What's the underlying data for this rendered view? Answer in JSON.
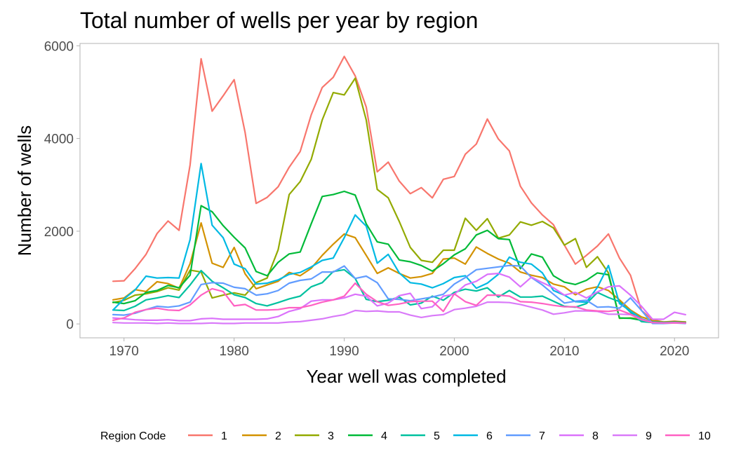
{
  "chart_data": {
    "type": "line",
    "title": "Total number of wells per year by region",
    "xlabel": "Year well was completed",
    "ylabel": "Number of wells",
    "xlim": [
      1966,
      2024
    ],
    "ylim": [
      -300,
      6050
    ],
    "x_ticks": [
      1970,
      1980,
      1990,
      2000,
      2010,
      2020
    ],
    "y_ticks": [
      0,
      2000,
      4000,
      6000
    ],
    "x_tick_labels": [
      "1970",
      "1980",
      "1990",
      "2000",
      "2010",
      "2020"
    ],
    "y_tick_labels": [
      "0",
      "2000",
      "4000",
      "6000"
    ],
    "grid": false,
    "legend": {
      "title": "Region Code",
      "position": "bottom"
    },
    "x": [
      1969,
      1970,
      1971,
      1972,
      1973,
      1974,
      1975,
      1976,
      1977,
      1978,
      1979,
      1980,
      1981,
      1982,
      1983,
      1984,
      1985,
      1986,
      1987,
      1988,
      1989,
      1990,
      1991,
      1992,
      1993,
      1994,
      1995,
      1996,
      1997,
      1998,
      1999,
      2000,
      2001,
      2002,
      2003,
      2004,
      2005,
      2006,
      2007,
      2008,
      2009,
      2010,
      2011,
      2012,
      2013,
      2014,
      2015,
      2016,
      2017,
      2018,
      2019,
      2020,
      2021
    ],
    "series": [
      {
        "name": "1",
        "color": "#F8766D",
        "values": [
          920,
          930,
          1190,
          1500,
          1950,
          2220,
          2020,
          3430,
          5720,
          4590,
          4920,
          5270,
          4130,
          2600,
          2730,
          2960,
          3380,
          3720,
          4510,
          5100,
          5320,
          5770,
          5350,
          4680,
          3280,
          3490,
          3080,
          2810,
          2940,
          2720,
          3120,
          3180,
          3660,
          3880,
          4420,
          3990,
          3730,
          2970,
          2610,
          2350,
          2140,
          1700,
          1290,
          1480,
          1680,
          1940,
          1420,
          1050,
          290,
          90,
          40,
          60,
          40
        ]
      },
      {
        "name": "2",
        "color": "#D39200",
        "values": [
          520,
          560,
          740,
          700,
          910,
          870,
          770,
          1300,
          2180,
          1310,
          1220,
          1650,
          1080,
          760,
          840,
          920,
          1110,
          1040,
          1200,
          1480,
          1720,
          1940,
          1860,
          1480,
          1090,
          1210,
          1090,
          990,
          1020,
          1090,
          1400,
          1420,
          1290,
          1660,
          1520,
          1400,
          1310,
          1120,
          1050,
          1000,
          860,
          800,
          630,
          750,
          800,
          720,
          520,
          300,
          150,
          80,
          40,
          50,
          40
        ]
      },
      {
        "name": "3",
        "color": "#93AA00",
        "values": [
          460,
          510,
          620,
          650,
          700,
          780,
          730,
          1160,
          1120,
          560,
          620,
          670,
          620,
          890,
          990,
          1600,
          2790,
          3070,
          3550,
          4400,
          4990,
          4940,
          5300,
          4400,
          2900,
          2720,
          2210,
          1650,
          1370,
          1330,
          1590,
          1590,
          2280,
          2020,
          2270,
          1850,
          1920,
          2200,
          2130,
          2210,
          2070,
          1700,
          1840,
          1220,
          1450,
          1100,
          120,
          130,
          100,
          50,
          40,
          40,
          40
        ]
      },
      {
        "name": "4",
        "color": "#00BA38",
        "values": [
          470,
          440,
          500,
          680,
          720,
          830,
          780,
          1050,
          2550,
          2420,
          2120,
          1870,
          1640,
          1130,
          1040,
          1330,
          1510,
          1550,
          2160,
          2750,
          2790,
          2860,
          2780,
          2160,
          1770,
          1720,
          1380,
          1340,
          1260,
          1140,
          1300,
          1490,
          1620,
          1920,
          2020,
          1840,
          1820,
          1190,
          1510,
          1440,
          1040,
          900,
          850,
          940,
          1100,
          1060,
          130,
          120,
          80,
          40,
          30,
          40,
          30
        ]
      },
      {
        "name": "5",
        "color": "#00C19F",
        "values": [
          300,
          290,
          380,
          520,
          560,
          610,
          570,
          840,
          1150,
          920,
          780,
          630,
          570,
          440,
          390,
          460,
          540,
          600,
          800,
          890,
          1130,
          1170,
          980,
          530,
          480,
          510,
          580,
          410,
          450,
          600,
          510,
          680,
          750,
          710,
          780,
          580,
          720,
          580,
          580,
          600,
          490,
          380,
          360,
          440,
          680,
          570,
          480,
          250,
          50,
          30,
          20,
          30,
          20
        ]
      },
      {
        "name": "6",
        "color": "#00B9E3",
        "values": [
          300,
          540,
          730,
          1030,
          990,
          1000,
          990,
          1820,
          3460,
          2130,
          1860,
          1290,
          1190,
          860,
          880,
          950,
          1070,
          1110,
          1230,
          1370,
          1420,
          1860,
          2350,
          2110,
          1310,
          1500,
          1100,
          890,
          860,
          780,
          870,
          1000,
          1040,
          770,
          880,
          1070,
          1440,
          1330,
          1290,
          1100,
          720,
          620,
          480,
          470,
          790,
          1260,
          440,
          280,
          110,
          40,
          30,
          30,
          20
        ]
      },
      {
        "name": "7",
        "color": "#619CFF",
        "values": [
          200,
          190,
          230,
          310,
          380,
          360,
          390,
          470,
          850,
          890,
          880,
          790,
          760,
          620,
          650,
          720,
          880,
          940,
          970,
          1120,
          1120,
          1250,
          980,
          1030,
          890,
          540,
          530,
          500,
          540,
          580,
          640,
          860,
          1000,
          1170,
          1200,
          1230,
          1260,
          1250,
          1000,
          840,
          640,
          450,
          490,
          510,
          360,
          370,
          340,
          560,
          290,
          10,
          10,
          20,
          10
        ]
      },
      {
        "name": "8",
        "color": "#DB72FB",
        "values": [
          130,
          110,
          90,
          80,
          80,
          90,
          70,
          70,
          110,
          120,
          100,
          100,
          100,
          100,
          110,
          160,
          270,
          330,
          490,
          520,
          520,
          560,
          640,
          600,
          390,
          450,
          610,
          660,
          330,
          370,
          600,
          640,
          840,
          920,
          1070,
          1090,
          1010,
          800,
          1010,
          890,
          780,
          620,
          680,
          560,
          690,
          800,
          820,
          620,
          380,
          100,
          100,
          250,
          200
        ]
      },
      {
        "name": "9",
        "color": "#D97AF9",
        "values": [
          30,
          20,
          20,
          20,
          10,
          20,
          10,
          10,
          10,
          20,
          10,
          10,
          20,
          20,
          20,
          20,
          40,
          50,
          80,
          110,
          160,
          200,
          290,
          270,
          280,
          260,
          260,
          190,
          140,
          180,
          200,
          310,
          340,
          380,
          470,
          470,
          460,
          420,
          360,
          300,
          210,
          240,
          280,
          280,
          270,
          210,
          210,
          200,
          90,
          30,
          20,
          30,
          20
        ]
      },
      {
        "name": "10",
        "color": "#FF61C3",
        "values": [
          80,
          130,
          250,
          310,
          340,
          300,
          290,
          410,
          620,
          760,
          700,
          390,
          420,
          300,
          300,
          310,
          350,
          350,
          400,
          470,
          520,
          600,
          880,
          640,
          480,
          400,
          430,
          480,
          490,
          490,
          270,
          650,
          480,
          400,
          620,
          620,
          600,
          480,
          470,
          440,
          400,
          370,
          370,
          300,
          280,
          270,
          300,
          210,
          100,
          30,
          20,
          20,
          20
        ]
      }
    ]
  }
}
